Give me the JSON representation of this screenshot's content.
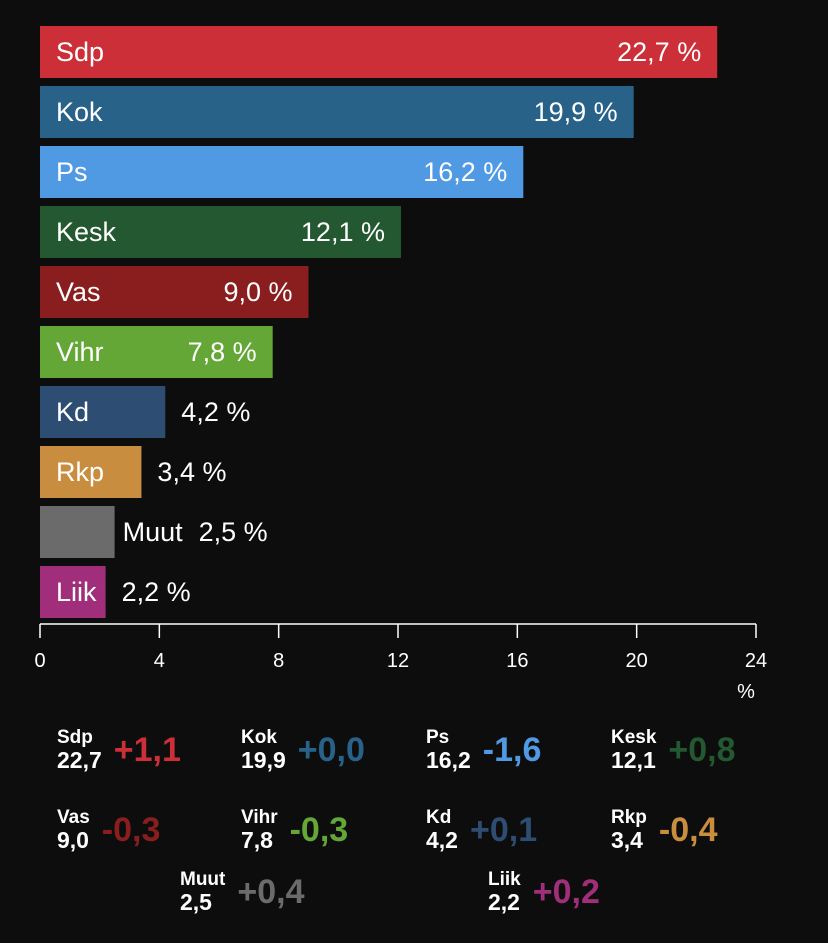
{
  "chart_data": {
    "type": "bar",
    "orientation": "horizontal",
    "unit": "%",
    "xlim": [
      0,
      24
    ],
    "ticks": [
      "0",
      "4",
      "8",
      "12",
      "16",
      "20",
      "24"
    ],
    "tick_values": [
      0,
      4,
      8,
      12,
      16,
      20,
      24
    ],
    "grid": false,
    "bars": [
      {
        "name": "Sdp",
        "value": 22.7,
        "label": "22,7 %",
        "color": "#cc2f38",
        "label_inside": true
      },
      {
        "name": "Kok",
        "value": 19.9,
        "label": "19,9 %",
        "color": "#286288",
        "label_inside": true
      },
      {
        "name": "Ps",
        "value": 16.2,
        "label": "16,2 %",
        "color": "#4f9ae2",
        "label_inside": true
      },
      {
        "name": "Kesk",
        "value": 12.1,
        "label": "12,1 %",
        "color": "#235830",
        "label_inside": true
      },
      {
        "name": "Vas",
        "value": 9.0,
        "label": "9,0 %",
        "color": "#8a1e1e",
        "label_inside": true
      },
      {
        "name": "Vihr",
        "value": 7.8,
        "label": "7,8 %",
        "color": "#64a736",
        "label_inside": true
      },
      {
        "name": "Kd",
        "value": 4.2,
        "label": "4,2 %",
        "color": "#2e4d73",
        "label_inside": false
      },
      {
        "name": "Rkp",
        "value": 3.4,
        "label": "3,4 %",
        "color": "#c98d3f",
        "label_inside": false
      },
      {
        "name": "Muut",
        "value": 2.5,
        "label": "2,5 %",
        "color": "#6b6b6b",
        "label_inside": false
      },
      {
        "name": "Liik",
        "value": 2.2,
        "label": "2,2 %",
        "color": "#a02e7a",
        "label_inside": false
      }
    ]
  },
  "changes": [
    {
      "party": "Sdp",
      "share": "22,7",
      "delta": "+1,1",
      "color": "#cc2f38"
    },
    {
      "party": "Kok",
      "share": "19,9",
      "delta": "+0,0",
      "color": "#286288"
    },
    {
      "party": "Ps",
      "share": "16,2",
      "delta": "-1,6",
      "color": "#4f9ae2"
    },
    {
      "party": "Kesk",
      "share": "12,1",
      "delta": "+0,8",
      "color": "#235830"
    },
    {
      "party": "Vas",
      "share": "9,0",
      "delta": "-0,3",
      "color": "#8a1e1e"
    },
    {
      "party": "Vihr",
      "share": "7,8",
      "delta": "-0,3",
      "color": "#64a736"
    },
    {
      "party": "Kd",
      "share": "4,2",
      "delta": "+0,1",
      "color": "#2e4d73"
    },
    {
      "party": "Rkp",
      "share": "3,4",
      "delta": "-0,4",
      "color": "#c98d3f"
    },
    {
      "party": "Muut",
      "share": "2,5",
      "delta": "+0,4",
      "color": "#6b6b6b"
    },
    {
      "party": "Liik",
      "share": "2,2",
      "delta": "+0,2",
      "color": "#a02e7a"
    }
  ]
}
